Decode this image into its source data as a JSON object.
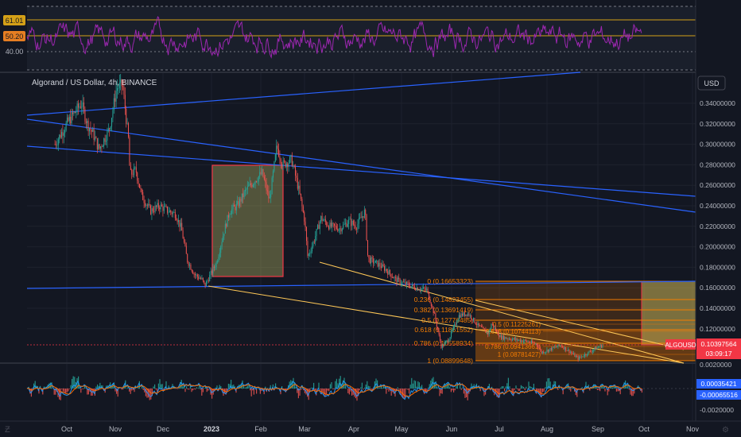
{
  "symbol": {
    "title": "Algorand / US Dollar, 4h, BINANCE",
    "currency_button": "USD"
  },
  "colors": {
    "background": "#131722",
    "grid": "#1e222d",
    "rsi_line": "#9c27b0",
    "trend_line": "#2962ff",
    "fib_line": "#f57c00",
    "fib_label": "#f57c00",
    "price_label": "#f23645",
    "macd_line": "#2196f3",
    "signal_line": "#ff6d00",
    "hist_up": "#26a69a",
    "hist_down": "#ef5350",
    "candle_up": "#26a69a",
    "candle_down": "#ef5350"
  },
  "rsi": {
    "levels": [
      "61.01",
      "50.20",
      "40.00"
    ]
  },
  "price_axis": {
    "ticks": [
      "0.34000000",
      "0.32000000",
      "0.30000000",
      "0.28000000",
      "0.26000000",
      "0.24000000",
      "0.22000000",
      "0.20000000",
      "0.18000000",
      "0.16000000",
      "0.14000000",
      "0.12000000"
    ],
    "current_price": "0.10397564",
    "countdown": "03:09:17",
    "symbol_tag": "ALGOUSD"
  },
  "macd_axis": {
    "ticks": [
      "0.0020000",
      "-0.0020000"
    ],
    "macd_value": "0.00035421",
    "signal_value": "-0.00065516"
  },
  "time_axis": {
    "labels": [
      "Oct",
      "Nov",
      "Dec",
      "2023",
      "Feb",
      "Mar",
      "Apr",
      "May",
      "Jun",
      "Jul",
      "Aug",
      "Sep",
      "Oct",
      "Nov"
    ]
  },
  "fibonacci": {
    "main": [
      "0 (0.16653323)",
      "0.236 (0.14823455)",
      "0.382 (0.13691419)",
      "0.5 (0.12776485)",
      "0.618 (0.11861552)",
      "0.786 (0.10558934)",
      "1 (0.08899648)"
    ],
    "secondary": [
      "0.5 (0.11225261)",
      "0.618 (0.10744113)",
      "0.786 (0.09413661)",
      "1 (0.08781427)"
    ]
  },
  "chart_data": {
    "type": "candlestick",
    "title": "Algorand / US Dollar, 4h, BINANCE",
    "y_range": [
      0.08,
      0.36
    ],
    "x_range": [
      "2022-09-01",
      "2023-11-30"
    ],
    "anchors": [
      [
        "2022-09-20",
        0.3
      ],
      [
        "2022-09-28",
        0.32
      ],
      [
        "2022-10-03",
        0.33
      ],
      [
        "2022-10-08",
        0.34
      ],
      [
        "2022-10-12",
        0.32
      ],
      [
        "2022-10-16",
        0.31
      ],
      [
        "2022-10-20",
        0.295
      ],
      [
        "2022-10-27",
        0.315
      ],
      [
        "2022-11-01",
        0.355
      ],
      [
        "2022-11-05",
        0.358
      ],
      [
        "2022-11-09",
        0.305
      ],
      [
        "2022-11-10",
        0.27
      ],
      [
        "2022-11-14",
        0.275
      ],
      [
        "2022-11-18",
        0.25
      ],
      [
        "2022-11-24",
        0.235
      ],
      [
        "2022-11-30",
        0.24
      ],
      [
        "2022-12-06",
        0.235
      ],
      [
        "2022-12-11",
        0.232
      ],
      [
        "2022-12-15",
        0.218
      ],
      [
        "2022-12-19",
        0.187
      ],
      [
        "2022-12-24",
        0.173
      ],
      [
        "2022-12-29",
        0.168
      ],
      [
        "2022-12-31",
        0.162
      ],
      [
        "2023-01-08",
        0.185
      ],
      [
        "2023-01-13",
        0.215
      ],
      [
        "2023-01-17",
        0.235
      ],
      [
        "2023-01-22",
        0.24
      ],
      [
        "2023-01-28",
        0.255
      ],
      [
        "2023-02-03",
        0.265
      ],
      [
        "2023-02-08",
        0.272
      ],
      [
        "2023-02-13",
        0.245
      ],
      [
        "2023-02-18",
        0.298
      ],
      [
        "2023-02-22",
        0.28
      ],
      [
        "2023-02-28",
        0.285
      ],
      [
        "2023-03-05",
        0.255
      ],
      [
        "2023-03-09",
        0.225
      ],
      [
        "2023-03-11",
        0.19
      ],
      [
        "2023-03-15",
        0.205
      ],
      [
        "2023-03-20",
        0.228
      ],
      [
        "2023-03-26",
        0.22
      ],
      [
        "2023-04-02",
        0.218
      ],
      [
        "2023-04-08",
        0.225
      ],
      [
        "2023-04-13",
        0.22
      ],
      [
        "2023-04-19",
        0.235
      ],
      [
        "2023-04-21",
        0.188
      ],
      [
        "2023-04-28",
        0.183
      ],
      [
        "2023-05-03",
        0.178
      ],
      [
        "2023-05-10",
        0.168
      ],
      [
        "2023-05-16",
        0.164
      ],
      [
        "2023-05-24",
        0.16
      ],
      [
        "2023-05-31",
        0.158
      ],
      [
        "2023-06-05",
        0.135
      ],
      [
        "2023-06-10",
        0.102
      ],
      [
        "2023-06-15",
        0.11
      ],
      [
        "2023-06-22",
        0.133
      ],
      [
        "2023-06-28",
        0.135
      ],
      [
        "2023-07-05",
        0.123
      ],
      [
        "2023-07-12",
        0.115
      ],
      [
        "2023-07-14",
        0.125
      ],
      [
        "2023-07-20",
        0.112
      ],
      [
        "2023-07-28",
        0.11
      ],
      [
        "2023-08-06",
        0.108
      ],
      [
        "2023-08-14",
        0.105
      ],
      [
        "2023-08-17",
        0.097
      ],
      [
        "2023-08-23",
        0.1
      ],
      [
        "2023-08-30",
        0.104
      ],
      [
        "2023-09-05",
        0.098
      ],
      [
        "2023-09-11",
        0.091
      ],
      [
        "2023-09-17",
        0.096
      ],
      [
        "2023-09-23",
        0.101
      ],
      [
        "2023-09-28",
        0.104
      ]
    ]
  }
}
